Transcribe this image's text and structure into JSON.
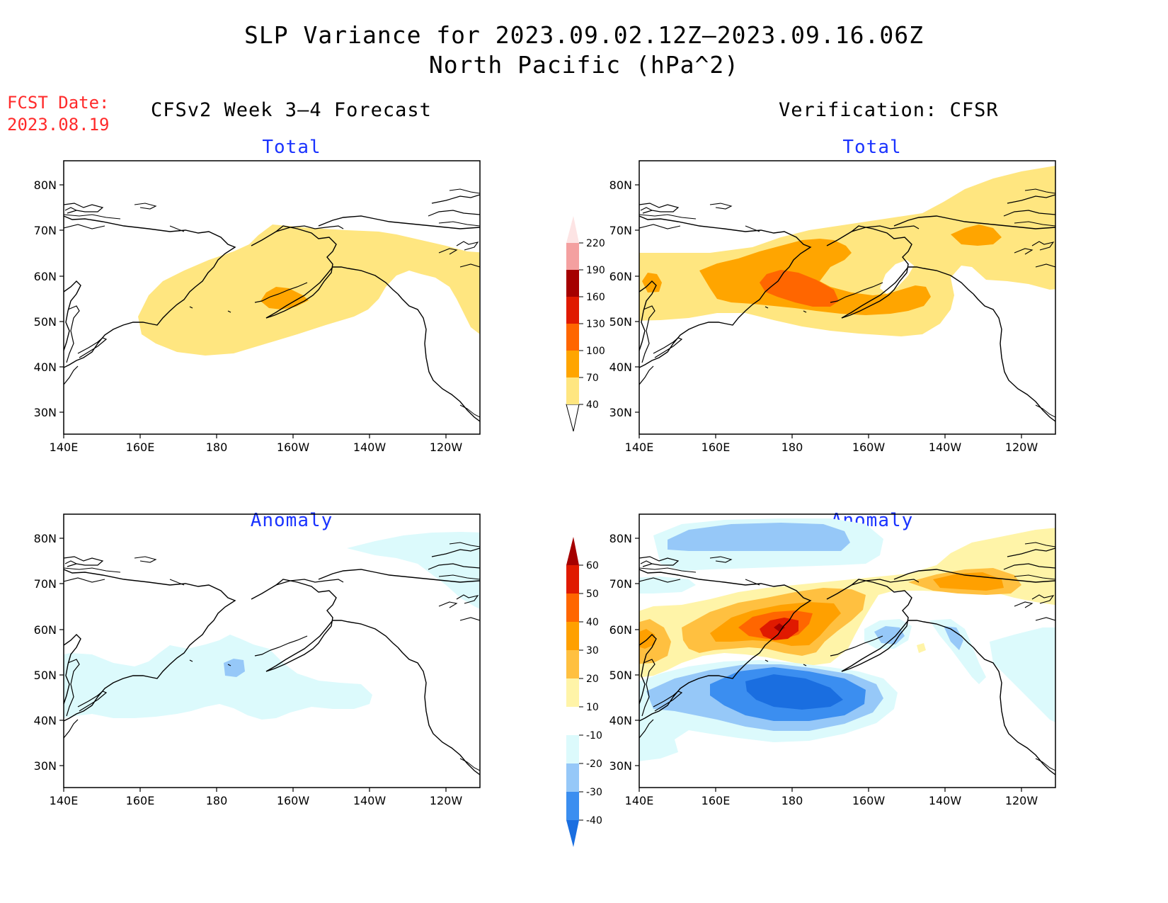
{
  "title_line1": "SLP Variance for 2023.09.02.12Z–2023.09.16.06Z",
  "title_line2": "North Pacific (hPa^2)",
  "fcst_label": "FCST Date:",
  "fcst_date": "2023.08.19",
  "left_column_title": "CFSv2 Week 3–4 Forecast",
  "right_column_title": "Verification: CFSR",
  "panels": [
    {
      "name": "forecast-total",
      "subtitle": "Total"
    },
    {
      "name": "verification-total",
      "subtitle": "Total"
    },
    {
      "name": "forecast-anomaly",
      "subtitle": "Anomaly"
    },
    {
      "name": "verification-anomaly",
      "subtitle": "Anomaly"
    }
  ],
  "lat_labels": [
    "80N",
    "70N",
    "60N",
    "50N",
    "40N",
    "30N"
  ],
  "lon_labels": [
    "140E",
    "160E",
    "180",
    "160W",
    "140W",
    "120W"
  ],
  "total_colorbar": {
    "levels": [
      "40",
      "70",
      "100",
      "130",
      "160",
      "190",
      "220"
    ],
    "colors": [
      "#ffe680",
      "#ffa500",
      "#ff6600",
      "#e01a00",
      "#a50000",
      "#f4a0a0",
      "#fde4e4"
    ]
  },
  "anomaly_colorbar": {
    "levels": [
      "-40",
      "-30",
      "-20",
      "-10",
      "10",
      "20",
      "30",
      "40",
      "50",
      "60"
    ],
    "colors": [
      "#1a6ee0",
      "#3b8ef0",
      "#96c8f8",
      "#dcfafc",
      "#ffffff",
      "#fff4a8",
      "#ffc040",
      "#ffa000",
      "#ff6600",
      "#e01a00",
      "#a50000"
    ]
  }
}
